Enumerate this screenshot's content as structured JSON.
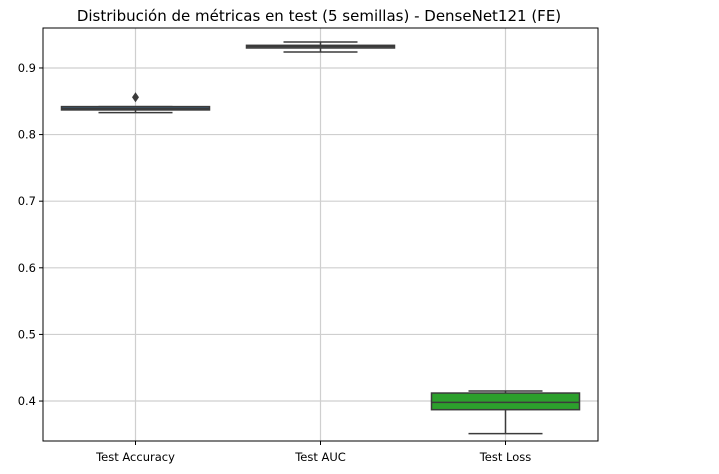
{
  "chart_data": {
    "type": "box",
    "title": "Distribución de métricas en test (5 semillas) - DenseNet121 (FE)",
    "xlabel": "",
    "ylabel": "",
    "categories": [
      "Test Accuracy",
      "Test AUC",
      "Test Loss"
    ],
    "ylim": [
      0.34,
      0.96
    ],
    "yticks": [
      "0.4",
      "0.5",
      "0.6",
      "0.7",
      "0.8",
      "0.9"
    ],
    "grid": true,
    "boxes": [
      {
        "category": "Test Accuracy",
        "color": "#3a5f7d",
        "whisker_low": 0.833,
        "q1": 0.837,
        "median": 0.839,
        "q3": 0.842,
        "whisker_high": 0.842,
        "outliers": [
          0.856
        ]
      },
      {
        "category": "Test AUC",
        "color": "#d1e5e7",
        "whisker_low": 0.924,
        "q1": 0.93,
        "median": 0.932,
        "q3": 0.934,
        "whisker_high": 0.939,
        "outliers": []
      },
      {
        "category": "Test Loss",
        "color": "#2ca02c",
        "whisker_low": 0.351,
        "q1": 0.387,
        "median": 0.398,
        "q3": 0.412,
        "whisker_high": 0.415,
        "outliers": []
      }
    ]
  }
}
